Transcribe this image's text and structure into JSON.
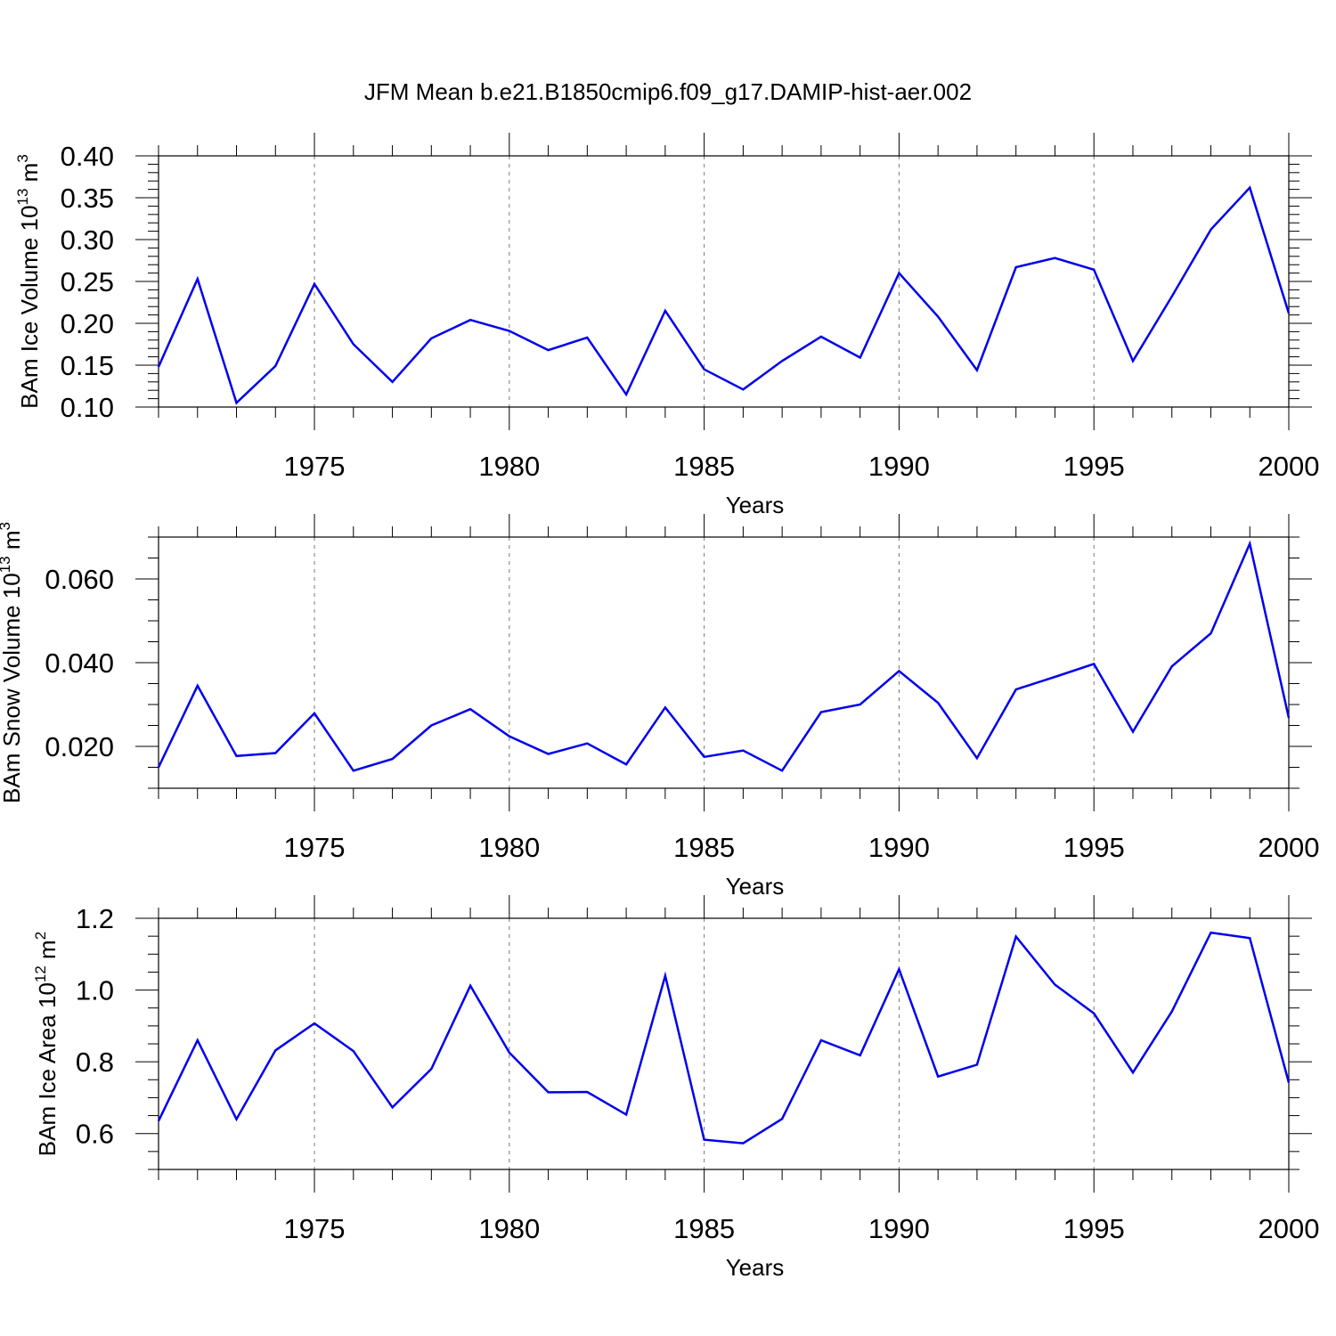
{
  "title": "JFM Mean b.e21.B1850cmip6.f09_g17.DAMIP-hist-aer.002",
  "line_color": "#0000ee",
  "chart_data": [
    {
      "type": "line",
      "name": "ice-volume",
      "ylabel": "BAm Ice Volume 10",
      "ylabel_sup": "13",
      "ylabel_unit": "m",
      "ylabel_unit_sup": "3",
      "xlabel": "Years",
      "xlim": [
        1971,
        2000
      ],
      "ylim": [
        0.1,
        0.4
      ],
      "x_ticks": [
        1975,
        1980,
        1985,
        1990,
        1995,
        2000
      ],
      "y_ticks": [
        0.1,
        0.15,
        0.2,
        0.25,
        0.3,
        0.35,
        0.4
      ],
      "y_tick_labels": [
        "0.10",
        "0.15",
        "0.20",
        "0.25",
        "0.30",
        "0.35",
        "0.40"
      ],
      "y_minor_step": 0.01,
      "x": [
        1971,
        1972,
        1973,
        1974,
        1975,
        1976,
        1977,
        1978,
        1979,
        1980,
        1981,
        1982,
        1983,
        1984,
        1985,
        1986,
        1987,
        1988,
        1989,
        1990,
        1991,
        1992,
        1993,
        1994,
        1995,
        1996,
        1997,
        1998,
        1999,
        2000
      ],
      "values": [
        0.148,
        0.253,
        0.105,
        0.149,
        0.247,
        0.175,
        0.13,
        0.182,
        0.204,
        0.191,
        0.168,
        0.183,
        0.115,
        0.215,
        0.145,
        0.121,
        0.155,
        0.184,
        0.159,
        0.26,
        0.208,
        0.144,
        0.267,
        0.278,
        0.264,
        0.155,
        0.232,
        0.312,
        0.362,
        0.212
      ]
    },
    {
      "type": "line",
      "name": "snow-volume",
      "ylabel": "BAm Snow Volume 10",
      "ylabel_sup": "13",
      "ylabel_unit": "m",
      "ylabel_unit_sup": "3",
      "xlabel": "Years",
      "xlim": [
        1971,
        2000
      ],
      "ylim": [
        0.01,
        0.07
      ],
      "x_ticks": [
        1975,
        1980,
        1985,
        1990,
        1995,
        2000
      ],
      "y_ticks": [
        0.02,
        0.04,
        0.06
      ],
      "y_tick_labels": [
        "0.020",
        "0.040",
        "0.060"
      ],
      "y_minor_step": 0.005,
      "x": [
        1971,
        1972,
        1973,
        1974,
        1975,
        1976,
        1977,
        1978,
        1979,
        1980,
        1981,
        1982,
        1983,
        1984,
        1985,
        1986,
        1987,
        1988,
        1989,
        1990,
        1991,
        1992,
        1993,
        1994,
        1995,
        1996,
        1997,
        1998,
        1999,
        2000
      ],
      "values": [
        0.015,
        0.0345,
        0.0177,
        0.0184,
        0.0279,
        0.0142,
        0.017,
        0.025,
        0.0289,
        0.0224,
        0.0182,
        0.0207,
        0.0157,
        0.0293,
        0.0175,
        0.019,
        0.0142,
        0.0282,
        0.03,
        0.038,
        0.0304,
        0.0172,
        0.0336,
        0.0366,
        0.0397,
        0.0235,
        0.0391,
        0.047,
        0.0684,
        0.0268
      ]
    },
    {
      "type": "line",
      "name": "ice-area",
      "ylabel": "BAm Ice Area 10",
      "ylabel_sup": "12",
      "ylabel_unit": "m",
      "ylabel_unit_sup": "2",
      "xlabel": "Years",
      "xlim": [
        1971,
        2000
      ],
      "ylim": [
        0.5,
        1.2
      ],
      "x_ticks": [
        1975,
        1980,
        1985,
        1990,
        1995,
        2000
      ],
      "y_ticks": [
        0.6,
        0.8,
        1.0,
        1.2
      ],
      "y_tick_labels": [
        "0.6",
        "0.8",
        "1.0",
        "1.2"
      ],
      "y_minor_step": 0.05,
      "x": [
        1971,
        1972,
        1973,
        1974,
        1975,
        1976,
        1977,
        1978,
        1979,
        1980,
        1981,
        1982,
        1983,
        1984,
        1985,
        1986,
        1987,
        1988,
        1989,
        1990,
        1991,
        1992,
        1993,
        1994,
        1995,
        1996,
        1997,
        1998,
        1999,
        2000
      ],
      "values": [
        0.635,
        0.86,
        0.64,
        0.832,
        0.907,
        0.83,
        0.673,
        0.78,
        1.012,
        0.826,
        0.715,
        0.716,
        0.653,
        1.04,
        0.583,
        0.573,
        0.641,
        0.86,
        0.818,
        1.058,
        0.759,
        0.792,
        1.149,
        1.015,
        0.935,
        0.77,
        0.94,
        1.16,
        1.145,
        0.742
      ]
    }
  ]
}
